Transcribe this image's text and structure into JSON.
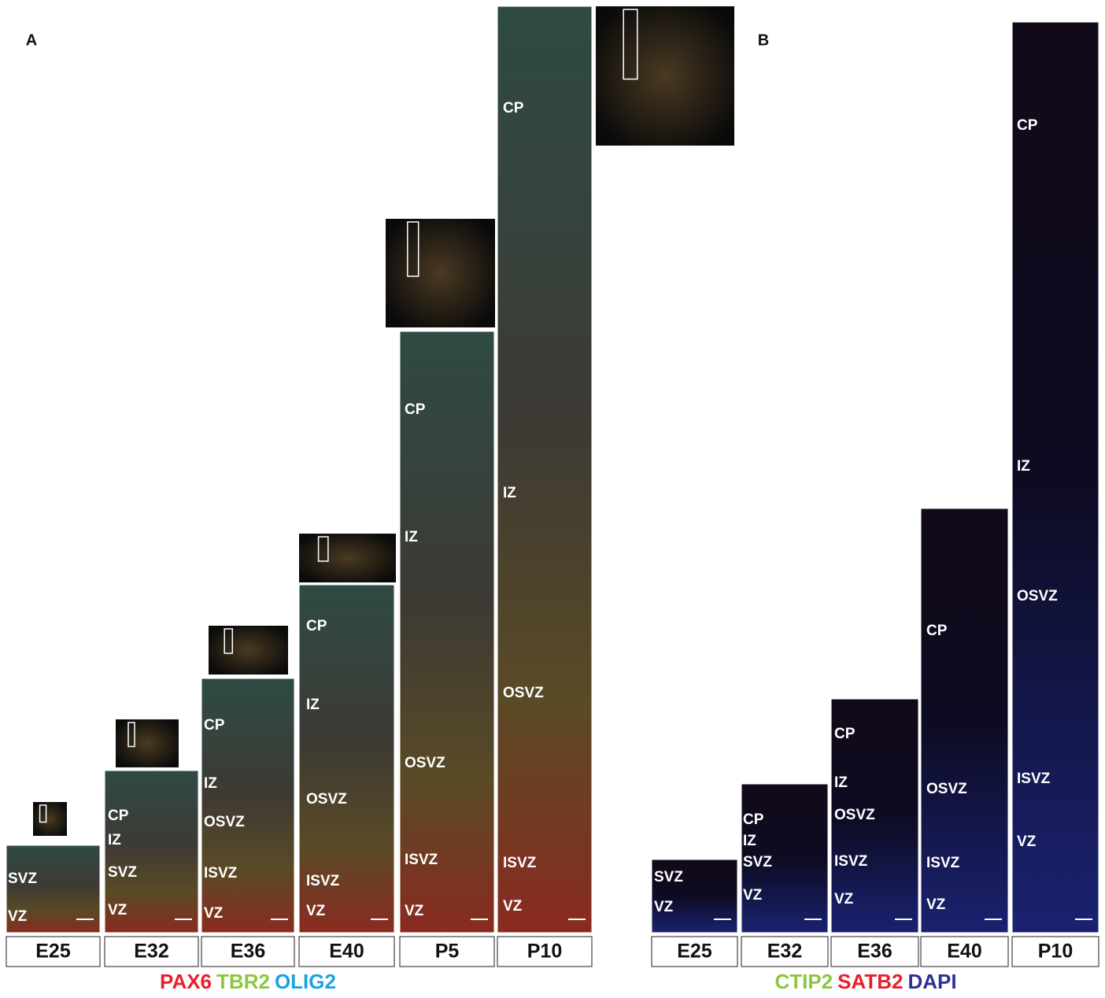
{
  "panels": [
    {
      "label": "A",
      "columns": [
        {
          "age": "E25",
          "zones": [
            "SVZ",
            "VZ"
          ]
        },
        {
          "age": "E32",
          "zones": [
            "CP",
            "IZ",
            "SVZ",
            "VZ"
          ]
        },
        {
          "age": "E36",
          "zones": [
            "CP",
            "IZ",
            "OSVZ",
            "ISVZ",
            "VZ"
          ]
        },
        {
          "age": "E40",
          "zones": [
            "CP",
            "IZ",
            "OSVZ",
            "ISVZ",
            "VZ"
          ]
        },
        {
          "age": "P5",
          "zones": [
            "CP",
            "IZ",
            "OSVZ",
            "ISVZ",
            "VZ"
          ]
        },
        {
          "age": "P10",
          "zones": [
            "CP",
            "IZ",
            "OSVZ",
            "ISVZ",
            "VZ"
          ]
        }
      ],
      "legend": [
        {
          "text": "PAX6",
          "color": "#e8202a"
        },
        {
          "text": "TBR2",
          "color": "#8dc63f"
        },
        {
          "text": "OLIG2",
          "color": "#1ba1e2"
        }
      ]
    },
    {
      "label": "B",
      "columns": [
        {
          "age": "E25",
          "zones": [
            "SVZ",
            "VZ"
          ]
        },
        {
          "age": "E32",
          "zones": [
            "CP",
            "IZ",
            "SVZ",
            "VZ"
          ]
        },
        {
          "age": "E36",
          "zones": [
            "CP",
            "IZ",
            "OSVZ",
            "ISVZ",
            "VZ"
          ]
        },
        {
          "age": "E40",
          "zones": [
            "CP",
            "OSVZ",
            "ISVZ",
            "VZ"
          ]
        },
        {
          "age": "P10",
          "zones": [
            "CP",
            "IZ",
            "OSVZ",
            "ISVZ",
            "VZ"
          ]
        }
      ],
      "legend": [
        {
          "text": "CTIP2",
          "color": "#8dc63f"
        },
        {
          "text": "SATB2",
          "color": "#e8202a"
        },
        {
          "text": "DAPI",
          "color": "#2e3192"
        }
      ]
    }
  ]
}
